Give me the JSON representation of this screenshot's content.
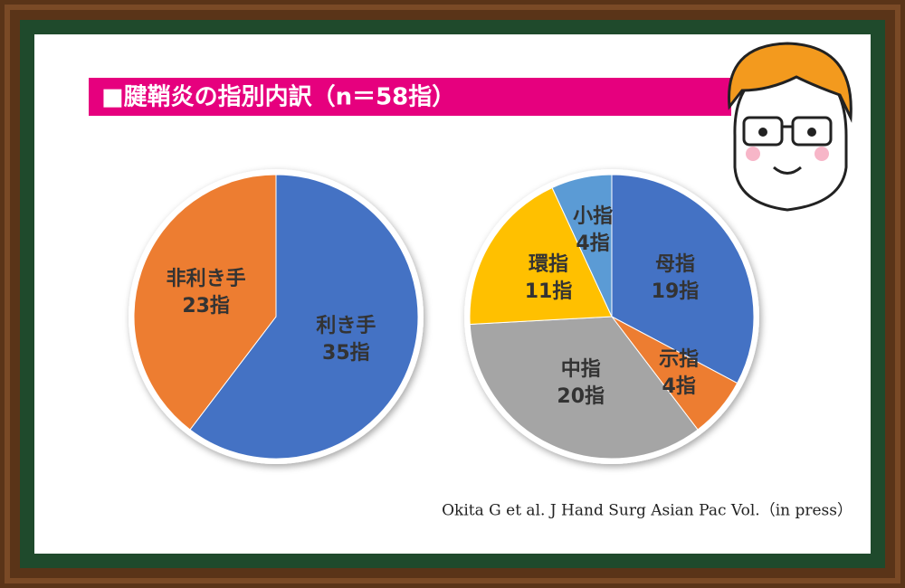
{
  "title": "■腱鞘炎の指別内訳（n＝58指）",
  "citation": "Okita G et al. J Hand Surg Asian Pac Vol.（in press）",
  "chart_data": [
    {
      "type": "pie",
      "categories": [
        "利き手",
        "非利き手"
      ],
      "values": [
        35,
        23
      ],
      "value_labels": [
        "35指",
        "23指"
      ],
      "colors": [
        "#4472c4",
        "#ed7d31"
      ]
    },
    {
      "type": "pie",
      "categories": [
        "母指",
        "示指",
        "中指",
        "環指",
        "小指"
      ],
      "values": [
        19,
        4,
        20,
        11,
        4
      ],
      "value_labels": [
        "19指",
        "4指",
        "20指",
        "11指",
        "4指"
      ],
      "colors": [
        "#4472c4",
        "#ed7d31",
        "#a5a5a5",
        "#ffc000",
        "#5b9bd5"
      ]
    }
  ]
}
